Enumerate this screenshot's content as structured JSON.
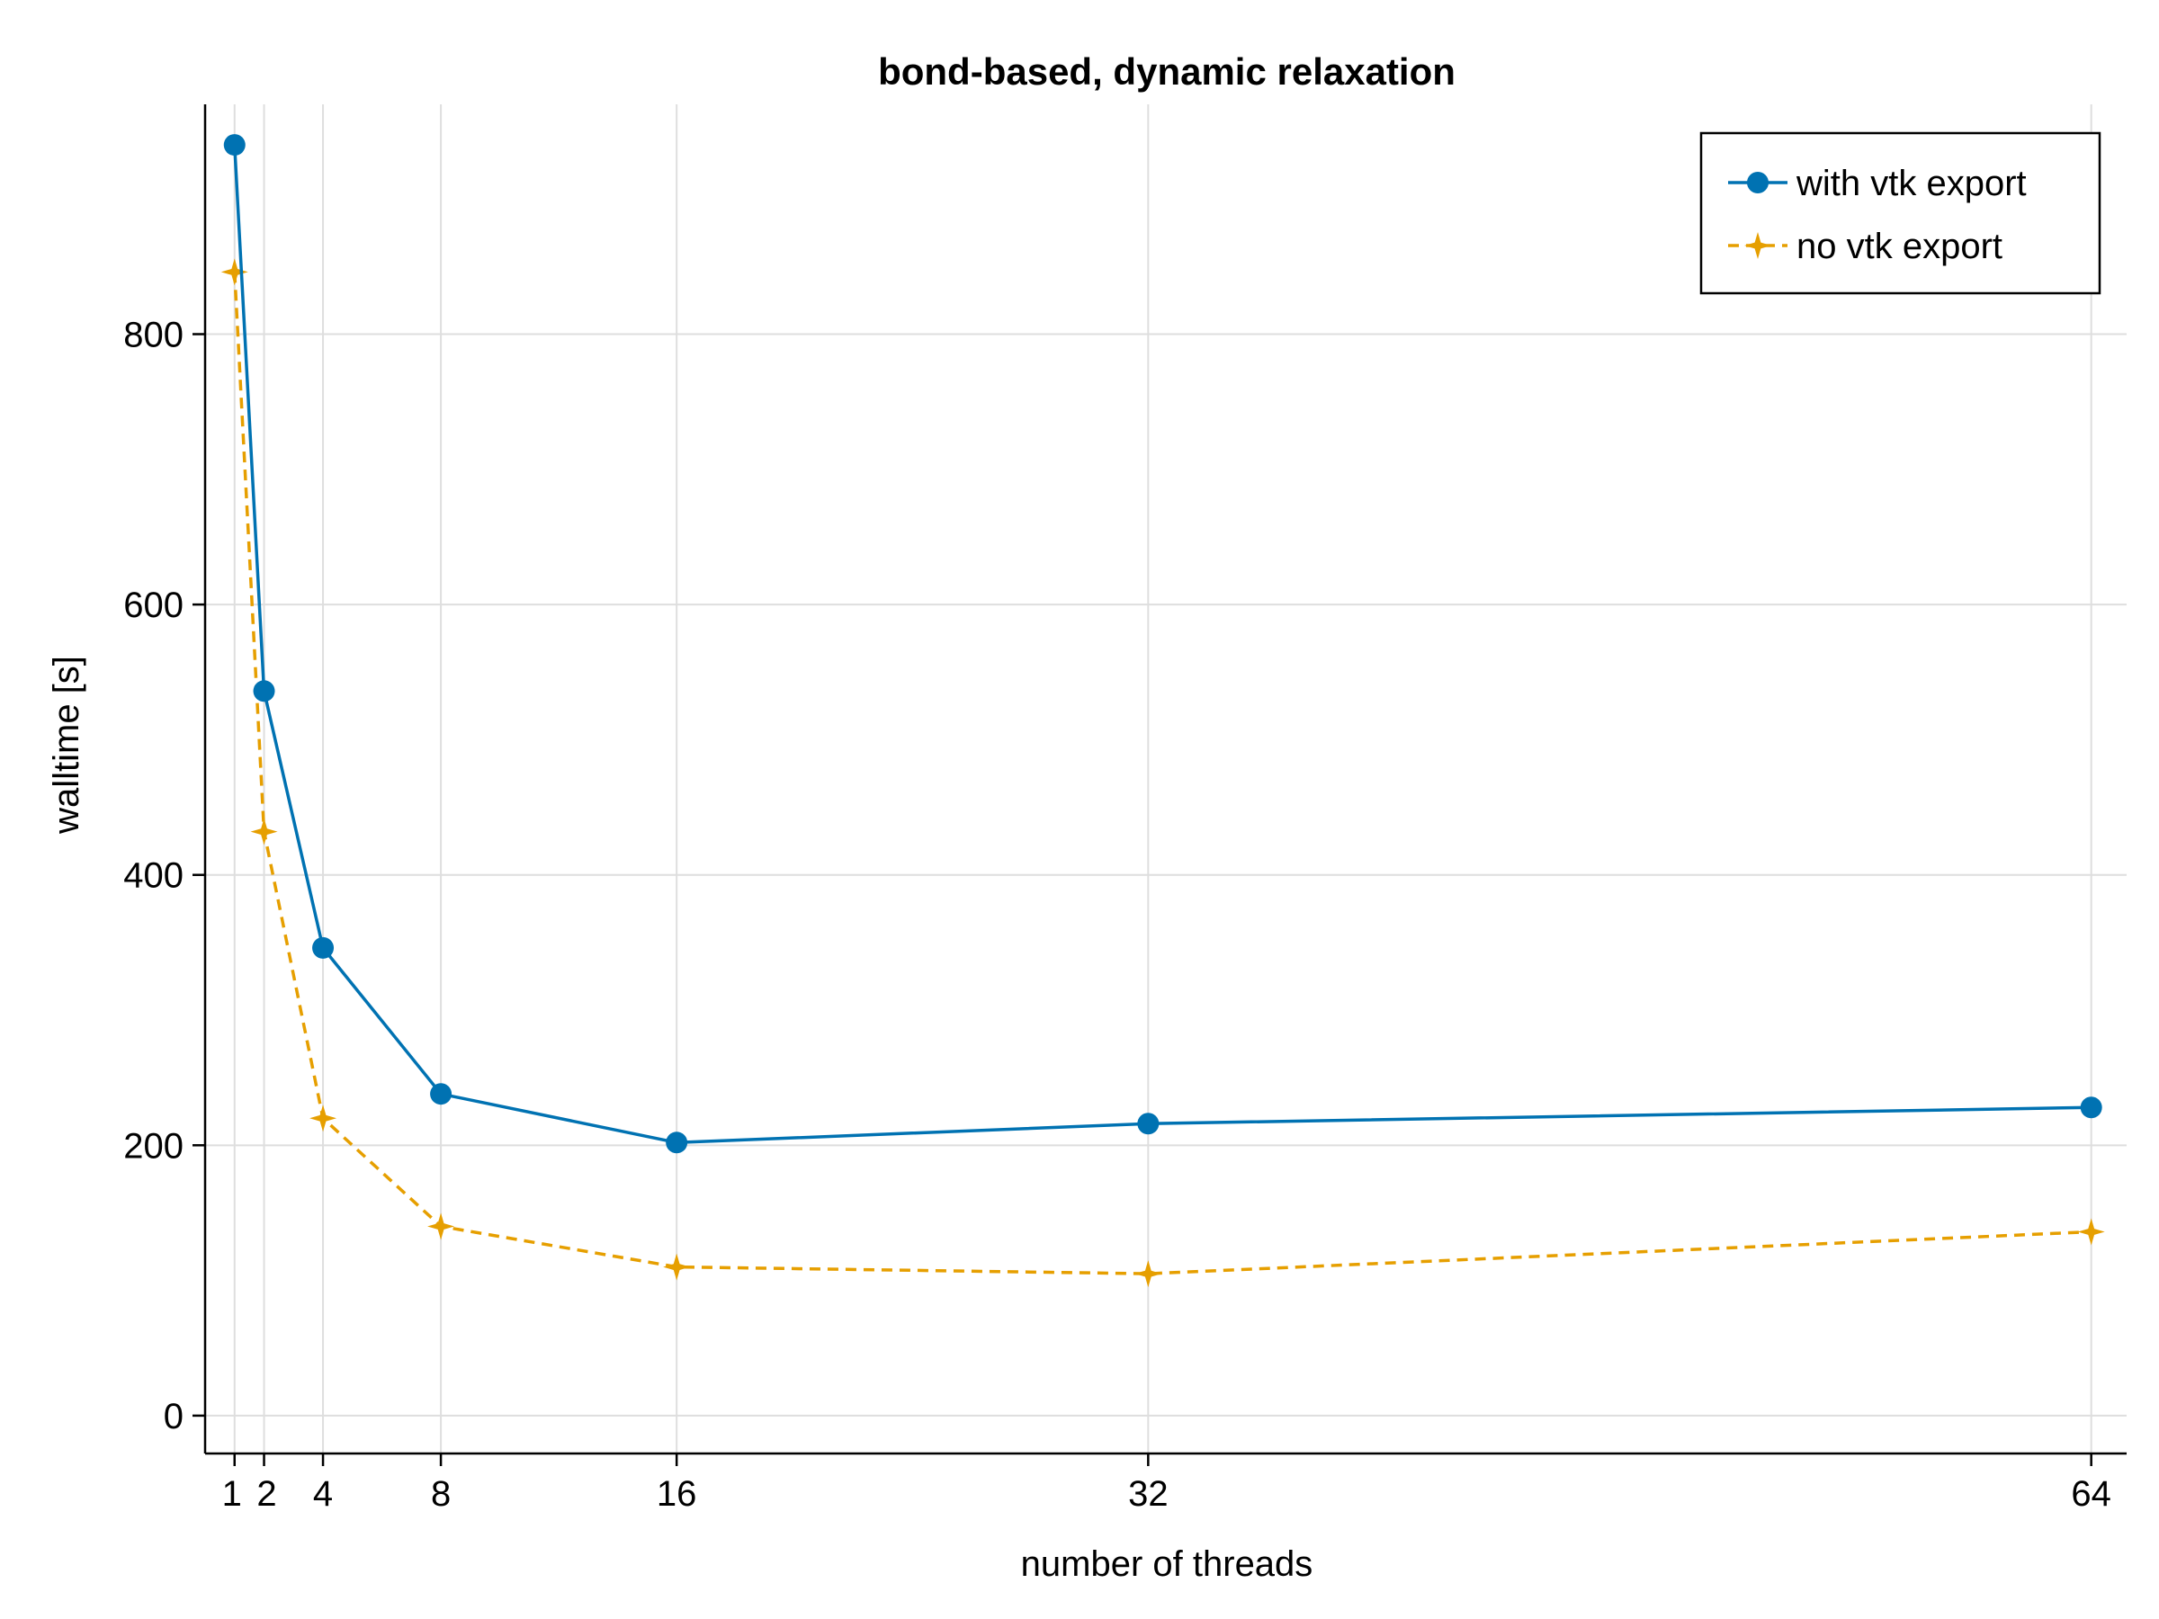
{
  "chart_data": {
    "type": "line",
    "title": "bond-based, dynamic relaxation",
    "xlabel": "number of threads",
    "ylabel": "walltime [s]",
    "x": [
      1,
      2,
      4,
      8,
      16,
      32,
      64
    ],
    "xticks": [
      "1",
      "2",
      "4",
      "8",
      "16",
      "32",
      "64"
    ],
    "yticks": [
      "0",
      "200",
      "400",
      "600",
      "800"
    ],
    "xlim": [
      0,
      65.2
    ],
    "ylim": [
      -28,
      970
    ],
    "grid": true,
    "legend_position": "top-right",
    "series": [
      {
        "name": "with vtk export",
        "values": [
          940,
          536,
          346,
          238,
          202,
          216,
          228
        ],
        "color": "#0072b2",
        "line_style": "solid",
        "marker": "circle"
      },
      {
        "name": "no vtk export",
        "values": [
          846,
          432,
          220,
          140,
          110,
          105,
          136
        ],
        "color": "#e69f00",
        "line_style": "dashed",
        "marker": "star"
      }
    ]
  }
}
